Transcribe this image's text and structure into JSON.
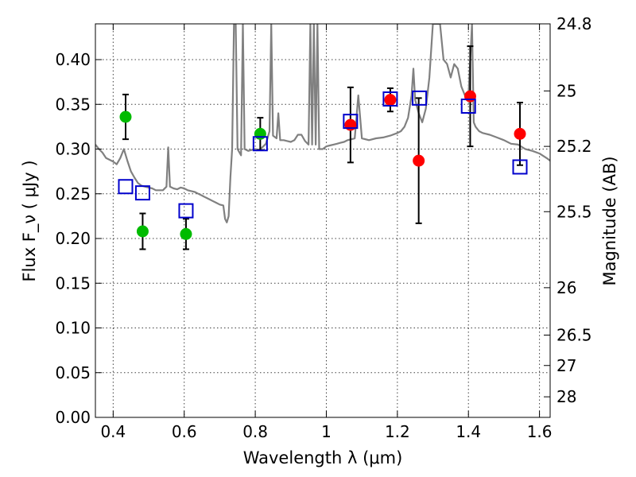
{
  "chart_data": {
    "type": "scatter",
    "xlabel": "Wavelength  λ (μm)",
    "ylabel_left": "Flux  F_ν  ( μJy )",
    "ylabel_right": "Magnitude (AB)",
    "xlim": [
      0.35,
      1.63
    ],
    "ylim": [
      0.0,
      0.44
    ],
    "grid": true,
    "x_ticks": [
      {
        "value": 0.4,
        "label": "0.4"
      },
      {
        "value": 0.6,
        "label": "0.6"
      },
      {
        "value": 0.8,
        "label": "0.8"
      },
      {
        "value": 1.0,
        "label": "1"
      },
      {
        "value": 1.2,
        "label": "1.2"
      },
      {
        "value": 1.4,
        "label": "1.4"
      },
      {
        "value": 1.6,
        "label": "1.6"
      }
    ],
    "y_ticks": [
      {
        "value": 0.0,
        "label": "0.00"
      },
      {
        "value": 0.05,
        "label": "0.05"
      },
      {
        "value": 0.1,
        "label": "0.10"
      },
      {
        "value": 0.15,
        "label": "0.15"
      },
      {
        "value": 0.2,
        "label": "0.20"
      },
      {
        "value": 0.25,
        "label": "0.25"
      },
      {
        "value": 0.3,
        "label": "0.30"
      },
      {
        "value": 0.35,
        "label": "0.35"
      },
      {
        "value": 0.4,
        "label": "0.40"
      }
    ],
    "right_ticks": [
      {
        "flux": 0.44,
        "label": "24.8"
      },
      {
        "flux": 0.365,
        "label": "25"
      },
      {
        "flux": 0.303,
        "label": "25.2"
      },
      {
        "flux": 0.23,
        "label": "25.5"
      },
      {
        "flux": 0.145,
        "label": "26"
      },
      {
        "flux": 0.092,
        "label": "26.5"
      },
      {
        "flux": 0.058,
        "label": "27"
      },
      {
        "flux": 0.023,
        "label": "28"
      }
    ],
    "series": [
      {
        "name": "Model SED",
        "kind": "line",
        "color": "#808080",
        "points": [
          [
            0.35,
            0.305
          ],
          [
            0.36,
            0.3
          ],
          [
            0.37,
            0.296
          ],
          [
            0.38,
            0.29
          ],
          [
            0.39,
            0.288
          ],
          [
            0.4,
            0.286
          ],
          [
            0.41,
            0.283
          ],
          [
            0.42,
            0.29
          ],
          [
            0.43,
            0.3
          ],
          [
            0.44,
            0.287
          ],
          [
            0.45,
            0.275
          ],
          [
            0.46,
            0.268
          ],
          [
            0.47,
            0.262
          ],
          [
            0.48,
            0.259
          ],
          [
            0.49,
            0.258
          ],
          [
            0.5,
            0.257
          ],
          [
            0.51,
            0.256
          ],
          [
            0.52,
            0.254
          ],
          [
            0.53,
            0.254
          ],
          [
            0.54,
            0.254
          ],
          [
            0.55,
            0.258
          ],
          [
            0.555,
            0.302
          ],
          [
            0.56,
            0.258
          ],
          [
            0.57,
            0.256
          ],
          [
            0.58,
            0.255
          ],
          [
            0.59,
            0.257
          ],
          [
            0.6,
            0.256
          ],
          [
            0.61,
            0.254
          ],
          [
            0.62,
            0.253
          ],
          [
            0.63,
            0.252
          ],
          [
            0.64,
            0.25
          ],
          [
            0.65,
            0.248
          ],
          [
            0.66,
            0.246
          ],
          [
            0.67,
            0.244
          ],
          [
            0.68,
            0.242
          ],
          [
            0.69,
            0.24
          ],
          [
            0.7,
            0.238
          ],
          [
            0.71,
            0.237
          ],
          [
            0.715,
            0.222
          ],
          [
            0.72,
            0.218
          ],
          [
            0.725,
            0.225
          ],
          [
            0.73,
            0.268
          ],
          [
            0.735,
            0.3
          ],
          [
            0.74,
            0.44
          ],
          [
            0.745,
            0.44
          ],
          [
            0.75,
            0.3
          ],
          [
            0.76,
            0.293
          ],
          [
            0.765,
            0.44
          ],
          [
            0.77,
            0.3
          ],
          [
            0.78,
            0.298
          ],
          [
            0.79,
            0.299
          ],
          [
            0.8,
            0.3
          ],
          [
            0.81,
            0.299
          ],
          [
            0.82,
            0.302
          ],
          [
            0.83,
            0.306
          ],
          [
            0.84,
            0.32
          ],
          [
            0.845,
            0.44
          ],
          [
            0.85,
            0.315
          ],
          [
            0.86,
            0.312
          ],
          [
            0.865,
            0.34
          ],
          [
            0.87,
            0.31
          ],
          [
            0.88,
            0.31
          ],
          [
            0.89,
            0.309
          ],
          [
            0.9,
            0.308
          ],
          [
            0.91,
            0.31
          ],
          [
            0.92,
            0.316
          ],
          [
            0.93,
            0.316
          ],
          [
            0.94,
            0.309
          ],
          [
            0.95,
            0.305
          ],
          [
            0.955,
            0.44
          ],
          [
            0.96,
            0.305
          ],
          [
            0.965,
            0.44
          ],
          [
            0.97,
            0.305
          ],
          [
            0.975,
            0.44
          ],
          [
            0.98,
            0.3
          ],
          [
            0.99,
            0.3
          ],
          [
            1.0,
            0.303
          ],
          [
            1.01,
            0.304
          ],
          [
            1.02,
            0.305
          ],
          [
            1.03,
            0.306
          ],
          [
            1.04,
            0.307
          ],
          [
            1.05,
            0.308
          ],
          [
            1.06,
            0.31
          ],
          [
            1.08,
            0.312
          ],
          [
            1.09,
            0.36
          ],
          [
            1.1,
            0.312
          ],
          [
            1.12,
            0.31
          ],
          [
            1.14,
            0.312
          ],
          [
            1.16,
            0.313
          ],
          [
            1.18,
            0.315
          ],
          [
            1.2,
            0.318
          ],
          [
            1.21,
            0.32
          ],
          [
            1.22,
            0.325
          ],
          [
            1.23,
            0.335
          ],
          [
            1.24,
            0.36
          ],
          [
            1.245,
            0.39
          ],
          [
            1.25,
            0.355
          ],
          [
            1.26,
            0.34
          ],
          [
            1.27,
            0.33
          ],
          [
            1.28,
            0.345
          ],
          [
            1.29,
            0.38
          ],
          [
            1.3,
            0.44
          ],
          [
            1.31,
            0.44
          ],
          [
            1.32,
            0.44
          ],
          [
            1.33,
            0.4
          ],
          [
            1.34,
            0.395
          ],
          [
            1.35,
            0.38
          ],
          [
            1.36,
            0.395
          ],
          [
            1.37,
            0.39
          ],
          [
            1.38,
            0.37
          ],
          [
            1.39,
            0.36
          ],
          [
            1.4,
            0.358
          ],
          [
            1.41,
            0.44
          ],
          [
            1.415,
            0.33
          ],
          [
            1.42,
            0.325
          ],
          [
            1.43,
            0.32
          ],
          [
            1.44,
            0.318
          ],
          [
            1.46,
            0.316
          ],
          [
            1.48,
            0.313
          ],
          [
            1.5,
            0.31
          ],
          [
            1.52,
            0.306
          ],
          [
            1.54,
            0.305
          ],
          [
            1.56,
            0.3
          ],
          [
            1.58,
            0.298
          ],
          [
            1.6,
            0.295
          ],
          [
            1.62,
            0.29
          ],
          [
            1.63,
            0.287
          ]
        ]
      },
      {
        "name": "Green observed",
        "kind": "circle",
        "color": "#00bb00",
        "points": [
          {
            "x": 0.435,
            "y": 0.336,
            "err": 0.025
          },
          {
            "x": 0.483,
            "y": 0.208,
            "err": 0.02
          },
          {
            "x": 0.605,
            "y": 0.205,
            "err": 0.017
          },
          {
            "x": 0.814,
            "y": 0.317,
            "err": 0.018
          }
        ]
      },
      {
        "name": "Red observed",
        "kind": "circle",
        "color": "#ff0000",
        "points": [
          {
            "x": 1.068,
            "y": 0.327,
            "err": 0.042
          },
          {
            "x": 1.18,
            "y": 0.355,
            "err": 0.013
          },
          {
            "x": 1.26,
            "y": 0.287,
            "err": 0.07
          },
          {
            "x": 1.405,
            "y": 0.359,
            "err": 0.056
          },
          {
            "x": 1.545,
            "y": 0.317,
            "err": 0.035
          }
        ]
      },
      {
        "name": "Model photometry",
        "kind": "square",
        "color": "#0000cc",
        "points": [
          {
            "x": 0.435,
            "y": 0.258
          },
          {
            "x": 0.483,
            "y": 0.251
          },
          {
            "x": 0.605,
            "y": 0.231
          },
          {
            "x": 0.814,
            "y": 0.306
          },
          {
            "x": 1.068,
            "y": 0.331
          },
          {
            "x": 1.18,
            "y": 0.356
          },
          {
            "x": 1.262,
            "y": 0.357
          },
          {
            "x": 1.4,
            "y": 0.348
          },
          {
            "x": 1.545,
            "y": 0.28
          }
        ]
      }
    ]
  }
}
